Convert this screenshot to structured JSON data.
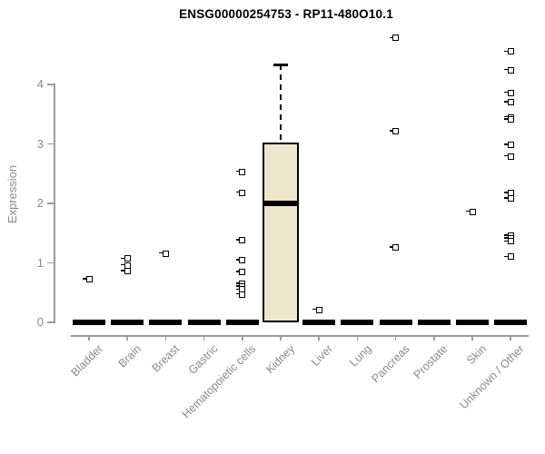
{
  "title": "ENSG00000254753 - RP11-480O10.1",
  "colors": {
    "box_fill": "#EDE7CF",
    "box_border": "#000000",
    "median": "#000000",
    "axis_line": "#9c9c9c",
    "axis_text": "#8a8a8a",
    "title_text": "#000000",
    "background": "#ffffff"
  },
  "chart_data": {
    "type": "boxplot",
    "title": "ENSG00000254753 - RP11-480O10.1",
    "xlabel": "",
    "ylabel": "Expression",
    "yticks": [
      0,
      1,
      2,
      3,
      4
    ],
    "ylim": [
      0,
      4.9
    ],
    "grid": false,
    "legend": false,
    "categories": [
      "Bladder",
      "Brain",
      "Breast",
      "Gastric",
      "Hematopoietic cells",
      "Kidney",
      "Liver",
      "Lung",
      "Pancreas",
      "Prostate",
      "Skin",
      "Unknown / Other"
    ],
    "series": [
      {
        "name": "Bladder",
        "q1": 0,
        "median": 0,
        "q3": 0,
        "whisker_low": 0,
        "whisker_high": 0,
        "outliers": [
          0.72
        ]
      },
      {
        "name": "Brain",
        "q1": 0,
        "median": 0,
        "q3": 0,
        "whisker_low": 0,
        "whisker_high": 0,
        "outliers": [
          1.07,
          0.96,
          0.86
        ]
      },
      {
        "name": "Breast",
        "q1": 0,
        "median": 0,
        "q3": 0,
        "whisker_low": 0,
        "whisker_high": 0,
        "outliers": [
          1.16
        ]
      },
      {
        "name": "Gastric",
        "q1": 0,
        "median": 0,
        "q3": 0,
        "whisker_low": 0,
        "whisker_high": 0,
        "outliers": []
      },
      {
        "name": "Hematopoietic cells",
        "q1": 0,
        "median": 0,
        "q3": 0,
        "whisker_low": 0,
        "whisker_high": 0,
        "outliers": [
          2.53,
          2.18,
          1.38,
          1.04,
          0.85,
          0.65,
          0.6,
          0.55,
          0.47
        ]
      },
      {
        "name": "Kidney",
        "q1": 0,
        "median": 2.0,
        "q3": 3.02,
        "whisker_low": 0,
        "whisker_high": 4.33,
        "outliers": []
      },
      {
        "name": "Liver",
        "q1": 0,
        "median": 0,
        "q3": 0,
        "whisker_low": 0,
        "whisker_high": 0,
        "outliers": [
          0.21
        ]
      },
      {
        "name": "Lung",
        "q1": 0,
        "median": 0,
        "q3": 0,
        "whisker_low": 0,
        "whisker_high": 0,
        "outliers": []
      },
      {
        "name": "Pancreas",
        "q1": 0,
        "median": 0,
        "q3": 0,
        "whisker_low": 0,
        "whisker_high": 0,
        "outliers": [
          4.78,
          3.21,
          1.26
        ]
      },
      {
        "name": "Prostate",
        "q1": 0,
        "median": 0,
        "q3": 0,
        "whisker_low": 0,
        "whisker_high": 0,
        "outliers": []
      },
      {
        "name": "Skin",
        "q1": 0,
        "median": 0,
        "q3": 0,
        "whisker_low": 0,
        "whisker_high": 0,
        "outliers": [
          1.86
        ]
      },
      {
        "name": "Unknown / Other",
        "q1": 0,
        "median": 0,
        "q3": 0,
        "whisker_low": 0,
        "whisker_high": 0,
        "outliers": [
          4.55,
          4.24,
          3.86,
          3.7,
          3.45,
          3.41,
          2.98,
          2.79,
          2.17,
          2.08,
          1.46,
          1.41,
          1.36,
          1.1
        ]
      }
    ]
  }
}
